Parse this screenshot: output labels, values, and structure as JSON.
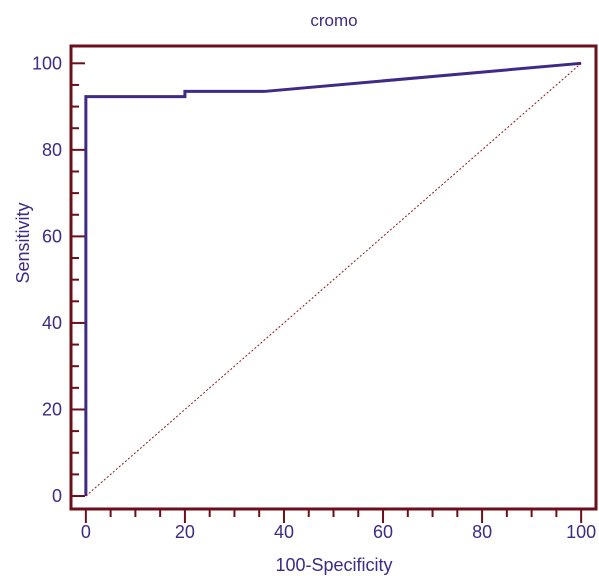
{
  "chart_data": {
    "type": "line",
    "title": "cromo",
    "xlabel": "100-Specificity",
    "ylabel": "Sensitivity",
    "xlim": [
      -3,
      103
    ],
    "ylim": [
      -3,
      104
    ],
    "xticks": [
      0,
      20,
      40,
      60,
      80,
      100
    ],
    "yticks": [
      0,
      20,
      40,
      60,
      80,
      100
    ],
    "grid": false,
    "series": [
      {
        "name": "",
        "x": [
          0,
          0,
          20,
          20,
          36,
          100
        ],
        "y": [
          0,
          92.3,
          92.3,
          93.5,
          93.5,
          100
        ]
      },
      {
        "name": "",
        "x": [
          0,
          100
        ],
        "y": [
          0,
          100
        ]
      }
    ],
    "colors": {
      "frame": "#6b0f1a",
      "curve": "#3f2a85",
      "reference": "#8b1a1a",
      "text": "#3f2a85"
    }
  }
}
